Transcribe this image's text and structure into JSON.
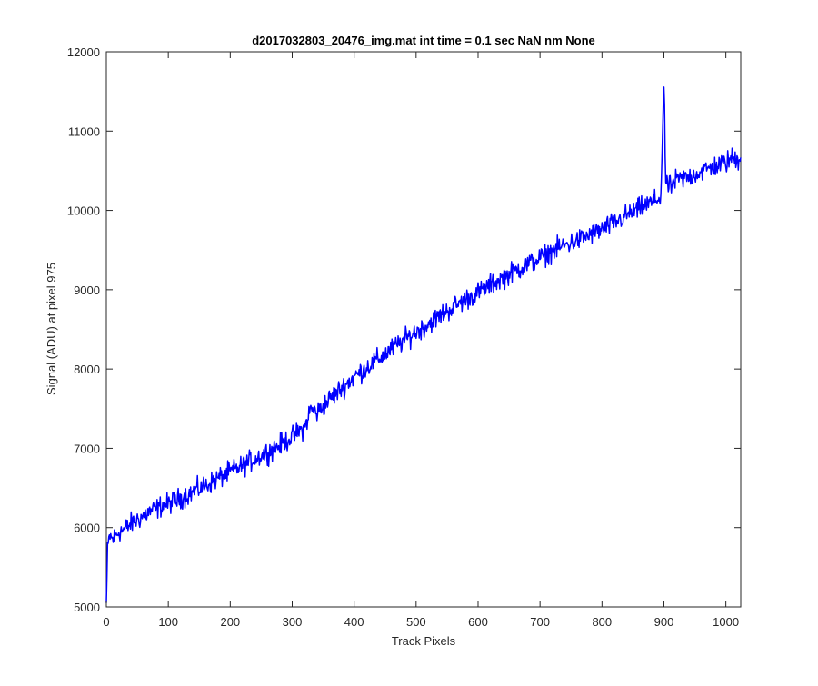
{
  "chart_data": {
    "type": "line",
    "title": "d2017032803_20476_img.mat int time = 0.1 sec  NaN nm None",
    "xlabel": "Track Pixels",
    "ylabel": "Signal (ADU) at pixel 975",
    "xlim": [
      0,
      1024
    ],
    "ylim": [
      5000,
      12000
    ],
    "xticks": [
      0,
      100,
      200,
      300,
      400,
      500,
      600,
      700,
      800,
      900,
      1000
    ],
    "yticks": [
      5000,
      6000,
      7000,
      8000,
      9000,
      10000,
      11000,
      12000
    ],
    "x_tick_labels": [
      "0",
      "100",
      "200",
      "300",
      "400",
      "500",
      "600",
      "700",
      "800",
      "900",
      "1000"
    ],
    "y_tick_labels": [
      "5000",
      "6000",
      "7000",
      "8000",
      "9000",
      "10000",
      "11000",
      "12000"
    ],
    "grid": false,
    "legend": "none",
    "colors": {
      "line": "#0000ff",
      "axes": "#262626",
      "background": "#ffffff"
    },
    "series": [
      {
        "x": [
          0,
          2,
          5,
          10,
          20,
          30,
          40,
          50,
          60,
          70,
          80,
          90,
          100,
          120,
          140,
          160,
          180,
          200,
          220,
          240,
          260,
          280,
          300,
          320,
          330,
          340,
          360,
          380,
          400,
          420,
          440,
          460,
          480,
          500,
          520,
          540,
          560,
          580,
          600,
          620,
          640,
          660,
          680,
          700,
          720,
          740,
          760,
          780,
          800,
          820,
          840,
          860,
          880,
          895,
          900,
          903,
          905,
          910,
          920,
          940,
          960,
          980,
          1000,
          1010,
          1020,
          1024
        ],
        "y": [
          5050,
          5700,
          5900,
          5850,
          5950,
          5980,
          6050,
          6100,
          6150,
          6200,
          6230,
          6280,
          6300,
          6370,
          6450,
          6530,
          6620,
          6700,
          6780,
          6870,
          6950,
          7040,
          7150,
          7260,
          7500,
          7450,
          7620,
          7760,
          7900,
          8020,
          8130,
          8250,
          8360,
          8470,
          8570,
          8680,
          8780,
          8880,
          8960,
          9060,
          9150,
          9240,
          9320,
          9400,
          9490,
          9560,
          9620,
          9690,
          9760,
          9840,
          9940,
          10020,
          10100,
          10170,
          11580,
          10350,
          10320,
          10300,
          10380,
          10420,
          10490,
          10550,
          10600,
          10660,
          10640,
          10700
        ],
        "noise_amplitude": 120
      }
    ]
  }
}
